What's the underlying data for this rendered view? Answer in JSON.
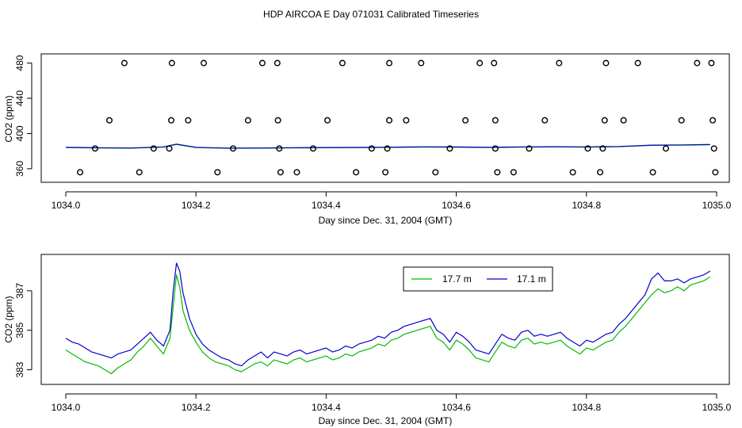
{
  "title": "HDP AIRCOA E  Day 071031  Calibrated Timeseries",
  "colors": {
    "series_a": "#00bb00",
    "series_b": "#0000cc",
    "axis": "#000000",
    "points": "#000000"
  },
  "chart_data": [
    {
      "type": "scatter+line",
      "xlabel": "Day since Dec. 31, 2004 (GMT)",
      "ylabel": "CO2 (ppm)",
      "xlim": [
        1034.0,
        1035.0
      ],
      "ylim": [
        350,
        485
      ],
      "xticks": [
        1034.0,
        1034.2,
        1034.4,
        1034.6,
        1034.8,
        1035.0
      ],
      "xtick_labels": [
        "1034.0",
        "1034.2",
        "1034.4",
        "1034.6",
        "1034.8",
        "1035.0"
      ],
      "yticks": [
        360,
        400,
        440,
        480
      ],
      "ytick_labels": [
        "360",
        "400",
        "440",
        "480"
      ],
      "calibration_points": [
        {
          "x": 1034.022,
          "y": 356
        },
        {
          "x": 1034.113,
          "y": 356
        },
        {
          "x": 1034.233,
          "y": 356
        },
        {
          "x": 1034.33,
          "y": 356
        },
        {
          "x": 1034.355,
          "y": 356
        },
        {
          "x": 1034.446,
          "y": 356
        },
        {
          "x": 1034.491,
          "y": 356
        },
        {
          "x": 1034.568,
          "y": 356
        },
        {
          "x": 1034.663,
          "y": 356
        },
        {
          "x": 1034.688,
          "y": 356
        },
        {
          "x": 1034.779,
          "y": 356
        },
        {
          "x": 1034.821,
          "y": 356
        },
        {
          "x": 1034.902,
          "y": 356
        },
        {
          "x": 1034.998,
          "y": 356
        },
        {
          "x": 1034.045,
          "y": 383
        },
        {
          "x": 1034.135,
          "y": 383
        },
        {
          "x": 1034.159,
          "y": 383
        },
        {
          "x": 1034.257,
          "y": 383
        },
        {
          "x": 1034.328,
          "y": 383
        },
        {
          "x": 1034.38,
          "y": 383
        },
        {
          "x": 1034.47,
          "y": 383
        },
        {
          "x": 1034.494,
          "y": 383
        },
        {
          "x": 1034.59,
          "y": 383
        },
        {
          "x": 1034.66,
          "y": 383
        },
        {
          "x": 1034.712,
          "y": 383
        },
        {
          "x": 1034.802,
          "y": 383
        },
        {
          "x": 1034.825,
          "y": 383
        },
        {
          "x": 1034.922,
          "y": 383
        },
        {
          "x": 1034.996,
          "y": 383
        },
        {
          "x": 1034.067,
          "y": 415
        },
        {
          "x": 1034.162,
          "y": 415
        },
        {
          "x": 1034.188,
          "y": 415
        },
        {
          "x": 1034.28,
          "y": 415
        },
        {
          "x": 1034.326,
          "y": 415
        },
        {
          "x": 1034.402,
          "y": 415
        },
        {
          "x": 1034.497,
          "y": 415
        },
        {
          "x": 1034.523,
          "y": 415
        },
        {
          "x": 1034.614,
          "y": 415
        },
        {
          "x": 1034.66,
          "y": 415
        },
        {
          "x": 1034.736,
          "y": 415
        },
        {
          "x": 1034.828,
          "y": 415
        },
        {
          "x": 1034.857,
          "y": 415
        },
        {
          "x": 1034.946,
          "y": 415
        },
        {
          "x": 1034.994,
          "y": 415
        },
        {
          "x": 1034.09,
          "y": 480
        },
        {
          "x": 1034.163,
          "y": 480
        },
        {
          "x": 1034.212,
          "y": 480
        },
        {
          "x": 1034.302,
          "y": 480
        },
        {
          "x": 1034.325,
          "y": 480
        },
        {
          "x": 1034.425,
          "y": 480
        },
        {
          "x": 1034.497,
          "y": 480
        },
        {
          "x": 1034.546,
          "y": 480
        },
        {
          "x": 1034.636,
          "y": 480
        },
        {
          "x": 1034.658,
          "y": 480
        },
        {
          "x": 1034.758,
          "y": 480
        },
        {
          "x": 1034.83,
          "y": 480
        },
        {
          "x": 1034.879,
          "y": 480
        },
        {
          "x": 1034.97,
          "y": 480
        },
        {
          "x": 1034.992,
          "y": 480
        }
      ],
      "series": [
        {
          "name": "17.7 m",
          "x": [
            1034.0,
            1034.05,
            1034.1,
            1034.15,
            1034.17,
            1034.2,
            1034.25,
            1034.3,
            1034.35,
            1034.4,
            1034.45,
            1034.5,
            1034.55,
            1034.6,
            1034.65,
            1034.7,
            1034.75,
            1034.8,
            1034.85,
            1034.9,
            1034.95,
            1034.99
          ],
          "values": [
            384,
            383.5,
            383.3,
            384.5,
            387.5,
            384,
            383.2,
            383.3,
            383.6,
            383.8,
            383.9,
            384.2,
            384.6,
            384.4,
            384,
            384.5,
            384.7,
            384.5,
            385,
            386.5,
            386.8,
            387.2
          ]
        },
        {
          "name": "17.1 m",
          "x": [
            1034.0,
            1034.05,
            1034.1,
            1034.15,
            1034.17,
            1034.2,
            1034.25,
            1034.3,
            1034.35,
            1034.4,
            1034.45,
            1034.5,
            1034.55,
            1034.6,
            1034.65,
            1034.7,
            1034.75,
            1034.8,
            1034.85,
            1034.9,
            1034.95,
            1034.99
          ],
          "values": [
            384.3,
            383.8,
            383.6,
            384.8,
            388,
            384.3,
            383.5,
            383.6,
            383.9,
            384.1,
            384.2,
            384.5,
            384.9,
            384.7,
            384.3,
            384.8,
            385,
            384.8,
            385.3,
            386.8,
            387.1,
            387.5
          ]
        }
      ]
    },
    {
      "type": "line",
      "xlabel": "Day since Dec. 31, 2004 (GMT)",
      "ylabel": "CO2 (ppm)",
      "xlim": [
        1034.0,
        1035.0
      ],
      "ylim": [
        382.5,
        388.6
      ],
      "xticks": [
        1034.0,
        1034.2,
        1034.4,
        1034.6,
        1034.8,
        1035.0
      ],
      "xtick_labels": [
        "1034.0",
        "1034.2",
        "1034.4",
        "1034.6",
        "1034.8",
        "1035.0"
      ],
      "yticks": [
        383,
        385,
        387
      ],
      "ytick_labels": [
        "383",
        "385",
        "387"
      ],
      "legend_position": "top-right",
      "series": [
        {
          "name": "17.7 m",
          "x": [
            1034.0,
            1034.01,
            1034.02,
            1034.03,
            1034.04,
            1034.05,
            1034.06,
            1034.07,
            1034.08,
            1034.09,
            1034.1,
            1034.11,
            1034.12,
            1034.13,
            1034.14,
            1034.15,
            1034.16,
            1034.165,
            1034.17,
            1034.175,
            1034.18,
            1034.19,
            1034.2,
            1034.21,
            1034.22,
            1034.23,
            1034.24,
            1034.25,
            1034.26,
            1034.27,
            1034.28,
            1034.29,
            1034.3,
            1034.31,
            1034.32,
            1034.33,
            1034.34,
            1034.35,
            1034.36,
            1034.37,
            1034.38,
            1034.39,
            1034.4,
            1034.41,
            1034.42,
            1034.43,
            1034.44,
            1034.45,
            1034.46,
            1034.47,
            1034.48,
            1034.49,
            1034.5,
            1034.51,
            1034.52,
            1034.53,
            1034.54,
            1034.55,
            1034.56,
            1034.57,
            1034.58,
            1034.59,
            1034.6,
            1034.61,
            1034.62,
            1034.63,
            1034.64,
            1034.65,
            1034.66,
            1034.67,
            1034.68,
            1034.69,
            1034.7,
            1034.71,
            1034.72,
            1034.73,
            1034.74,
            1034.75,
            1034.76,
            1034.77,
            1034.78,
            1034.79,
            1034.8,
            1034.81,
            1034.82,
            1034.83,
            1034.84,
            1034.85,
            1034.86,
            1034.87,
            1034.88,
            1034.89,
            1034.9,
            1034.91,
            1034.92,
            1034.93,
            1034.94,
            1034.95,
            1034.96,
            1034.97,
            1034.98,
            1034.99
          ],
          "values": [
            384.0,
            383.8,
            383.6,
            383.4,
            383.3,
            383.2,
            383.0,
            382.8,
            383.1,
            383.3,
            383.5,
            383.9,
            384.2,
            384.6,
            384.2,
            383.8,
            384.6,
            386.2,
            387.8,
            387.2,
            386.0,
            385.0,
            384.4,
            383.9,
            383.6,
            383.4,
            383.3,
            383.2,
            383.0,
            382.9,
            383.1,
            383.3,
            383.4,
            383.2,
            383.5,
            383.4,
            383.3,
            383.5,
            383.6,
            383.4,
            383.5,
            383.6,
            383.7,
            383.5,
            383.6,
            383.8,
            383.7,
            383.9,
            384.0,
            384.1,
            384.3,
            384.2,
            384.5,
            384.6,
            384.8,
            384.9,
            385.0,
            385.1,
            385.2,
            384.6,
            384.4,
            384.0,
            384.5,
            384.3,
            384.0,
            383.6,
            383.5,
            383.4,
            383.9,
            384.4,
            384.2,
            384.1,
            384.5,
            384.6,
            384.3,
            384.4,
            384.3,
            384.4,
            384.5,
            384.2,
            384.0,
            383.8,
            384.1,
            384.0,
            384.2,
            384.4,
            384.5,
            384.9,
            385.2,
            385.6,
            386.0,
            386.4,
            386.8,
            387.1,
            386.9,
            387.0,
            387.2,
            387.0,
            387.3,
            387.4,
            387.5,
            387.7
          ]
        },
        {
          "name": "17.1 m",
          "x": [
            1034.0,
            1034.01,
            1034.02,
            1034.03,
            1034.04,
            1034.05,
            1034.06,
            1034.07,
            1034.08,
            1034.09,
            1034.1,
            1034.11,
            1034.12,
            1034.13,
            1034.14,
            1034.15,
            1034.16,
            1034.165,
            1034.17,
            1034.175,
            1034.18,
            1034.19,
            1034.2,
            1034.21,
            1034.22,
            1034.23,
            1034.24,
            1034.25,
            1034.26,
            1034.27,
            1034.28,
            1034.29,
            1034.3,
            1034.31,
            1034.32,
            1034.33,
            1034.34,
            1034.35,
            1034.36,
            1034.37,
            1034.38,
            1034.39,
            1034.4,
            1034.41,
            1034.42,
            1034.43,
            1034.44,
            1034.45,
            1034.46,
            1034.47,
            1034.48,
            1034.49,
            1034.5,
            1034.51,
            1034.52,
            1034.53,
            1034.54,
            1034.55,
            1034.56,
            1034.57,
            1034.58,
            1034.59,
            1034.6,
            1034.61,
            1034.62,
            1034.63,
            1034.64,
            1034.65,
            1034.66,
            1034.67,
            1034.68,
            1034.69,
            1034.7,
            1034.71,
            1034.72,
            1034.73,
            1034.74,
            1034.75,
            1034.76,
            1034.77,
            1034.78,
            1034.79,
            1034.8,
            1034.81,
            1034.82,
            1034.83,
            1034.84,
            1034.85,
            1034.86,
            1034.87,
            1034.88,
            1034.89,
            1034.9,
            1034.91,
            1034.92,
            1034.93,
            1034.94,
            1034.95,
            1034.96,
            1034.97,
            1034.98,
            1034.99
          ],
          "values": [
            384.6,
            384.4,
            384.3,
            384.1,
            383.9,
            383.8,
            383.7,
            383.6,
            383.8,
            383.9,
            384.0,
            384.3,
            384.6,
            384.9,
            384.5,
            384.2,
            385.0,
            387.0,
            388.4,
            388.0,
            386.9,
            385.6,
            384.8,
            384.3,
            384.0,
            383.8,
            383.6,
            383.5,
            383.3,
            383.2,
            383.5,
            383.7,
            383.9,
            383.6,
            383.9,
            383.8,
            383.7,
            383.9,
            384.0,
            383.8,
            383.9,
            384.0,
            384.1,
            383.9,
            384.0,
            384.2,
            384.1,
            384.3,
            384.4,
            384.5,
            384.7,
            384.6,
            384.9,
            385.0,
            385.2,
            385.3,
            385.4,
            385.5,
            385.6,
            385.0,
            384.8,
            384.4,
            384.9,
            384.7,
            384.4,
            384.0,
            383.9,
            383.8,
            384.3,
            384.8,
            384.6,
            384.5,
            384.9,
            385.0,
            384.7,
            384.8,
            384.7,
            384.8,
            384.9,
            384.6,
            384.4,
            384.2,
            384.5,
            384.4,
            384.6,
            384.8,
            384.9,
            385.3,
            385.6,
            386.0,
            386.4,
            386.8,
            387.6,
            387.9,
            387.5,
            387.5,
            387.6,
            387.4,
            387.6,
            387.7,
            387.8,
            388.0
          ]
        }
      ]
    }
  ]
}
